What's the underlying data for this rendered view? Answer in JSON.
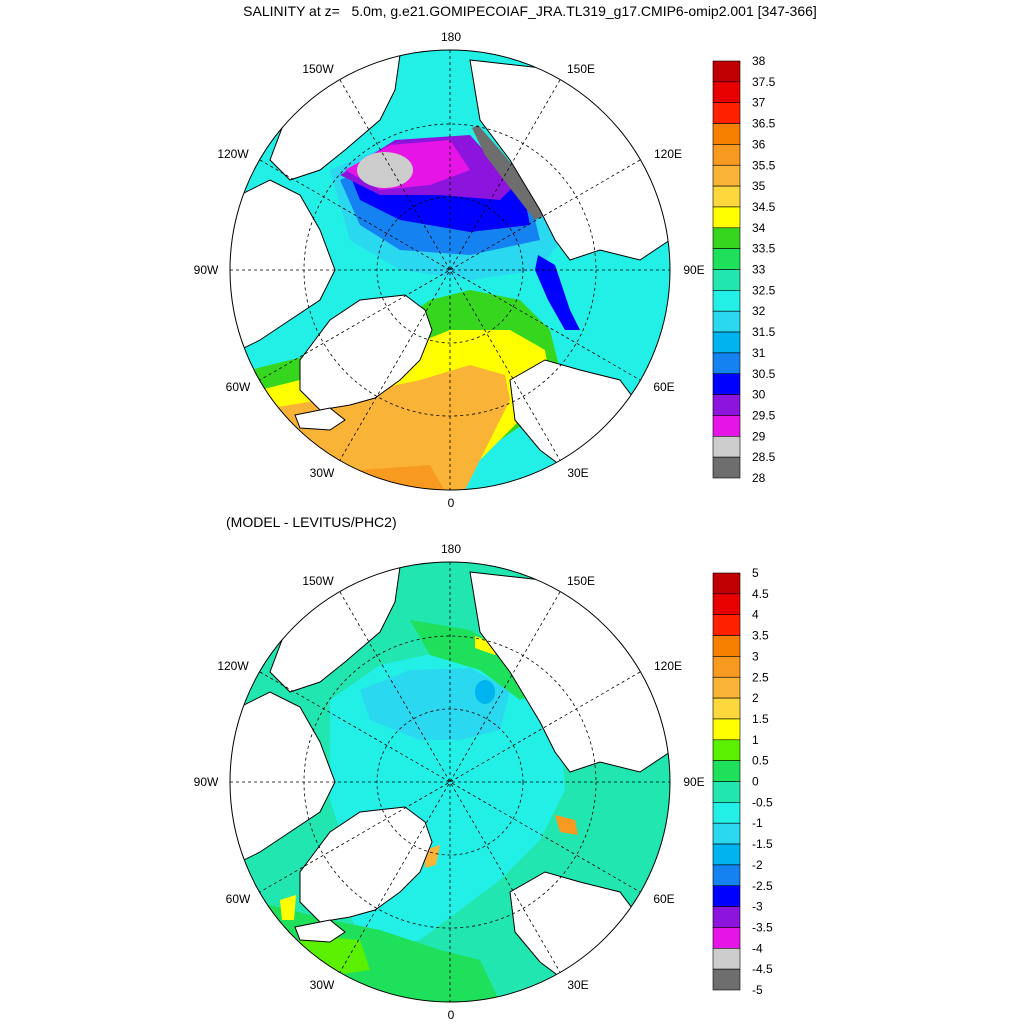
{
  "title": "SALINITY at z=   5.0m, g.e21.GOMIPECOIAF_JRA.TL319_g17.CMIP6-omip2.001 [347-366]",
  "subtitle": "(MODEL - LEVITUS/PHC2)",
  "lon_labels": {
    "deg180": "180",
    "w150": "150W",
    "e150": "150E",
    "w120": "120W",
    "e120": "120E",
    "w90": "90W",
    "e90": "90E",
    "w60": "60W",
    "e60": "60E",
    "w30": "30W",
    "e30": "30E",
    "deg0": "0"
  },
  "colorbar_top": {
    "labels": [
      "38",
      "37.5",
      "37",
      "36.5",
      "36",
      "35.5",
      "35",
      "34.5",
      "34",
      "33.5",
      "33",
      "32.5",
      "32",
      "31.5",
      "31",
      "30.5",
      "30",
      "29.5",
      "29",
      "28.5",
      "28"
    ],
    "colors": [
      "#c00000",
      "#e80000",
      "#ff2000",
      "#f78000",
      "#f89a20",
      "#f9b438",
      "#fcd83c",
      "#ffff00",
      "#37d61e",
      "#1ee05a",
      "#22e6b0",
      "#22f0e6",
      "#2ad8f0",
      "#00b4f0",
      "#1482f0",
      "#0000ff",
      "#8c14dc",
      "#e614e6",
      "#cccccc",
      "#6e6e6e"
    ]
  },
  "colorbar_bottom": {
    "labels": [
      "5",
      "4.5",
      "4",
      "3.5",
      "3",
      "2.5",
      "2",
      "1.5",
      "1",
      "0.5",
      "0",
      "-0.5",
      "-1",
      "-1.5",
      "-2",
      "-2.5",
      "-3",
      "-3.5",
      "-4",
      "-4.5",
      "-5"
    ],
    "colors": [
      "#c00000",
      "#e80000",
      "#ff2000",
      "#f78000",
      "#f89a20",
      "#f9b438",
      "#fcd83c",
      "#ffff00",
      "#5af000",
      "#1ee05a",
      "#22e6b0",
      "#22f0e6",
      "#2ad8f0",
      "#00b4f0",
      "#1482f0",
      "#0000ff",
      "#8c14dc",
      "#e614e6",
      "#cccccc",
      "#6e6e6e"
    ]
  }
}
